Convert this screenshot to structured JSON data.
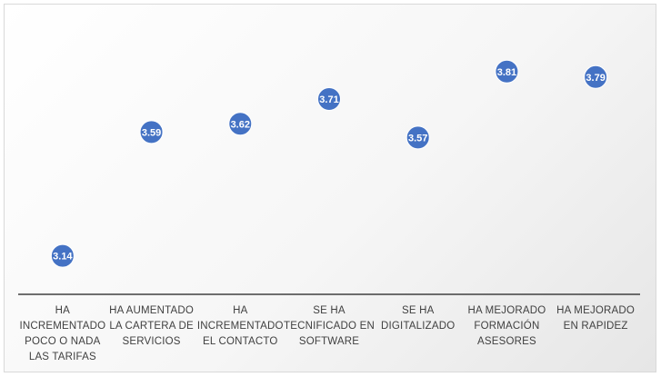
{
  "chart_data": {
    "type": "scatter",
    "title": "",
    "xlabel": "",
    "ylabel": "",
    "ylim": [
      3.0,
      3.9
    ],
    "grid": false,
    "legend": "none",
    "marker_color": "#4472c4",
    "axis_color": "#404040",
    "categories": [
      [
        "HA",
        "INCREMENTADO",
        "POCO O NADA",
        "LAS TARIFAS"
      ],
      [
        "HA AUMENTADO",
        "LA CARTERA DE",
        "SERVICIOS"
      ],
      [
        "HA",
        "INCREMENTADO",
        "EL CONTACTO"
      ],
      [
        "SE HA",
        "TECNIFICADO EN",
        "SOFTWARE"
      ],
      [
        "SE HA",
        "DIGITALIZADO"
      ],
      [
        "HA MEJORADO",
        "FORMACIÓN",
        "ASESORES"
      ],
      [
        "HA MEJORADO",
        "EN RAPIDEZ"
      ]
    ],
    "values": [
      3.14,
      3.59,
      3.62,
      3.71,
      3.57,
      3.81,
      3.79
    ],
    "data_labels": [
      "3.14",
      "3.59",
      "3.62",
      "3.71",
      "3.57",
      "3.81",
      "3.79"
    ]
  }
}
